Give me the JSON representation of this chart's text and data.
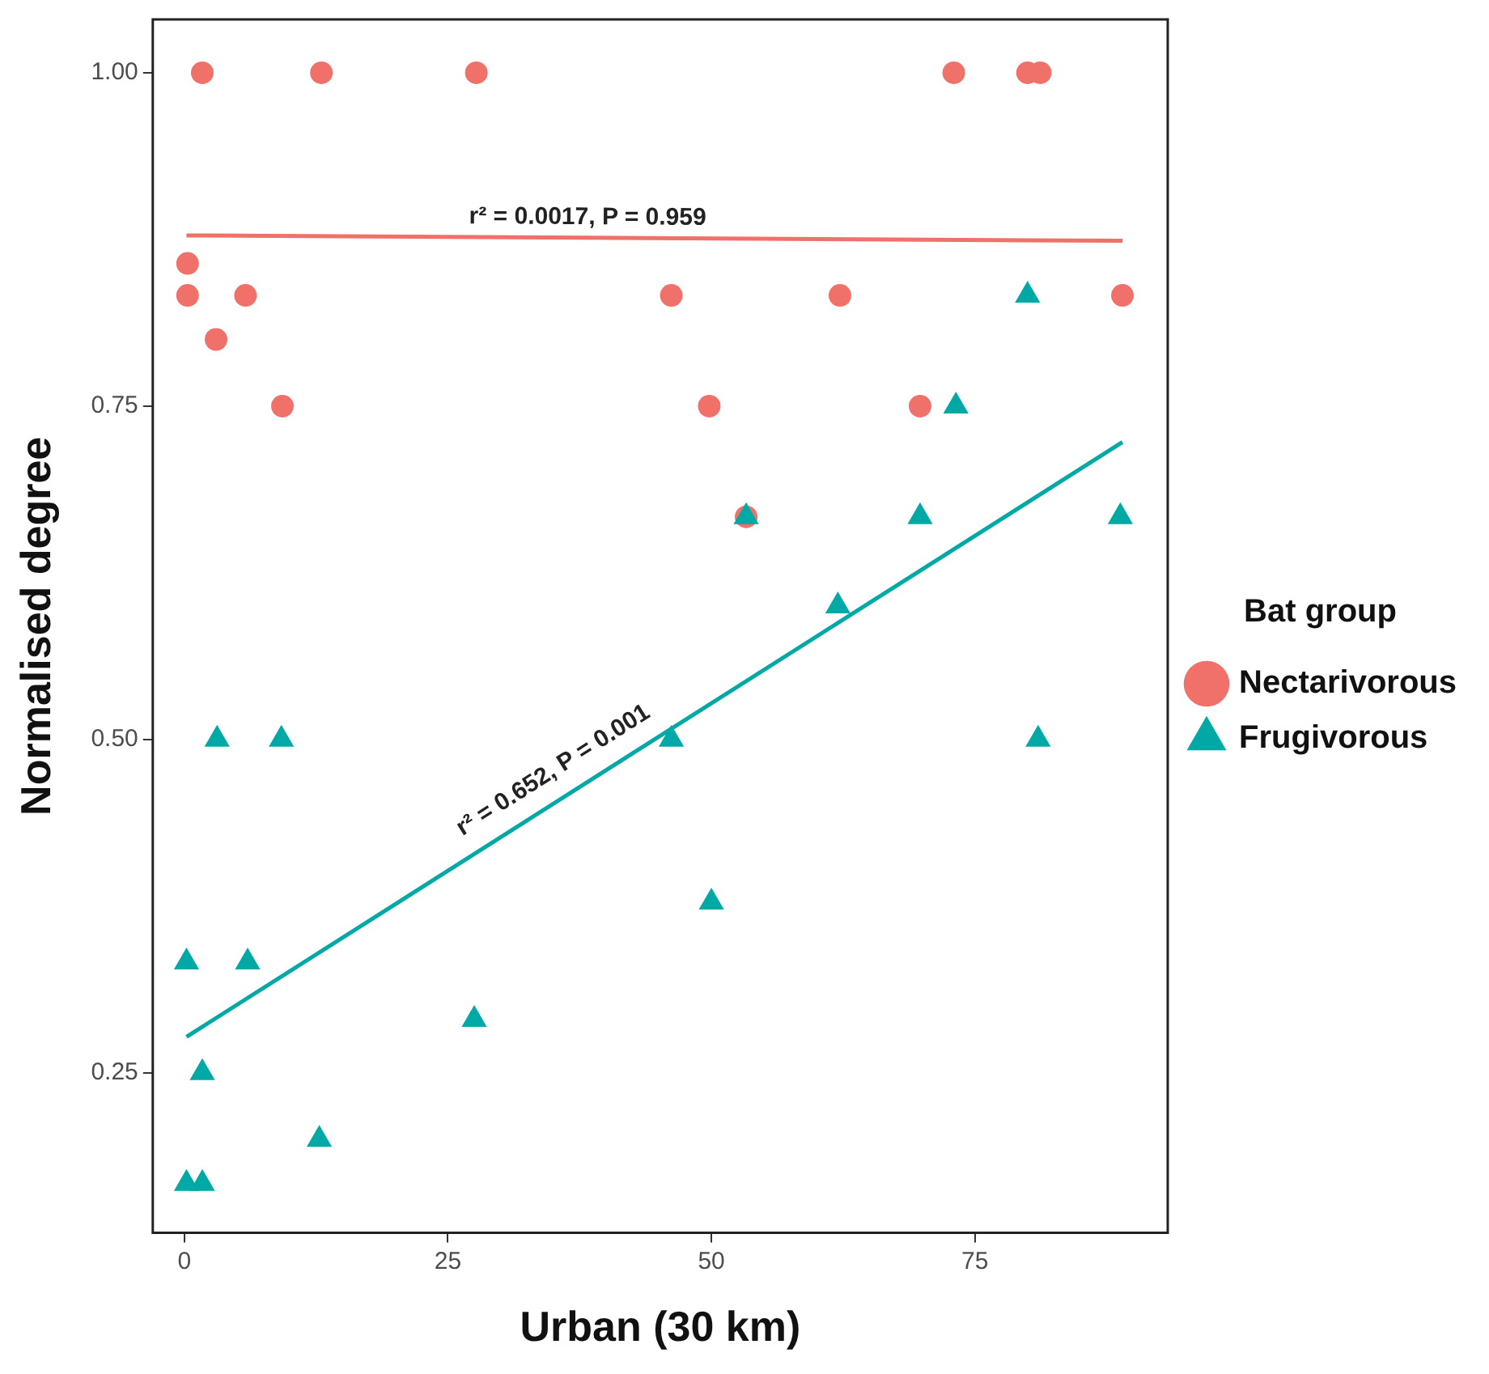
{
  "chart_data": {
    "type": "scatter",
    "xlabel": "Urban (30 km)",
    "ylabel": "Normalised degree",
    "legend_title": "Bat group",
    "legend": "right",
    "grid": false,
    "xlim": [
      -3,
      93.3
    ],
    "xticks": [
      0,
      25,
      50,
      75
    ],
    "ylim": [
      0.13,
      1.04
    ],
    "yticks": [
      {
        "value": 0.25,
        "label": "0.25"
      },
      {
        "value": 0.5,
        "label": "0.50"
      },
      {
        "value": 0.75,
        "label": "0.75"
      },
      {
        "value": 1,
        "label": "1.00"
      }
    ],
    "series": [
      {
        "name": "Nectarivorous",
        "color": "#f0706a",
        "marker": "circle",
        "x": [
          1.7,
          13,
          27.7,
          0.3,
          0.3,
          5.8,
          3,
          9.3,
          46.2,
          62.2,
          89,
          49.8,
          69.8,
          73,
          80,
          81.2,
          53.3
        ],
        "values": [
          1,
          1,
          1,
          0.857,
          0.833,
          0.833,
          0.8,
          0.75,
          0.833,
          0.833,
          0.833,
          0.75,
          0.75,
          1,
          1,
          1,
          0.667
        ]
      },
      {
        "name": "Frugivorous",
        "color": "#00a9a6",
        "marker": "triangle",
        "x": [
          3.1,
          9.2,
          0.2,
          6,
          27.5,
          1.7,
          12.8,
          0.2,
          1.7,
          46.2,
          50,
          81,
          80,
          73.2,
          53.3,
          69.8,
          88.8,
          62
        ],
        "values": [
          0.5,
          0.5,
          0.333,
          0.333,
          0.29,
          0.25,
          0.2,
          0.167,
          0.167,
          0.5,
          0.378,
          0.5,
          0.833,
          0.75,
          0.667,
          0.667,
          0.667,
          0.6
        ]
      },
      {
        "type": "line",
        "color": "#f0706a",
        "marker": "none",
        "x": [
          0.2,
          89
        ],
        "values": [
          0.878,
          0.874
        ]
      },
      {
        "type": "line",
        "color": "#00a9a6",
        "marker": "none",
        "x": [
          0.2,
          89
        ],
        "values": [
          0.277,
          0.723
        ]
      }
    ],
    "annotations": [
      {
        "text": "r² = 0.0017, P = 0.959",
        "x": 27,
        "y": 0.878
      },
      {
        "text": "r² = 0.652, P = 0.001",
        "x": 27,
        "y": 0.42
      }
    ]
  }
}
